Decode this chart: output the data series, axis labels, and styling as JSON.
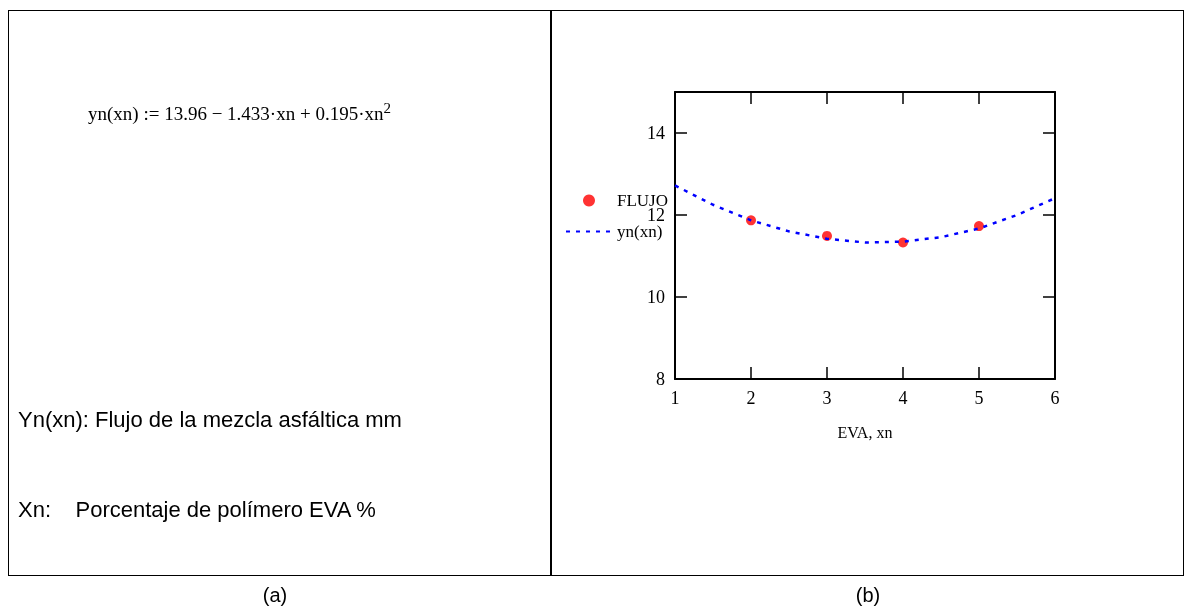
{
  "chart_data": {
    "type": "scatter",
    "xlabel": "EVA, xn",
    "xlim": [
      1,
      6
    ],
    "xticks": [
      1,
      2,
      3,
      4,
      5,
      6
    ],
    "ylim": [
      8,
      15
    ],
    "yticks": [
      8,
      10,
      12,
      14
    ],
    "grid": false,
    "legend": "left",
    "series": [
      {
        "name": "FLUJO",
        "marker": "circle",
        "color": "#ff0000",
        "x": [
          2,
          3,
          4,
          5
        ],
        "values": [
          11.87,
          11.49,
          11.33,
          11.73
        ]
      },
      {
        "name": "yn(xn)",
        "type": "line",
        "marker": "none",
        "line_style": "dotted",
        "color": "#0000ff",
        "x": [
          1,
          1.5,
          2,
          2.5,
          3,
          3.5,
          4,
          4.5,
          5,
          5.5,
          6
        ],
        "values": [
          12.72,
          12.25,
          11.87,
          11.6,
          11.42,
          11.33,
          11.35,
          11.46,
          11.67,
          12.0,
          12.41
        ]
      }
    ],
    "annotations": [
      "yn(xn) := 13.96 − 1.433·xn + 0.195·xn$^{2}$",
      "Yn(xn): Flujo de la mezcla asfáltica mm",
      "Xn:    Porcentaje de polímero EVA %",
      "(a)",
      "(b)"
    ]
  }
}
